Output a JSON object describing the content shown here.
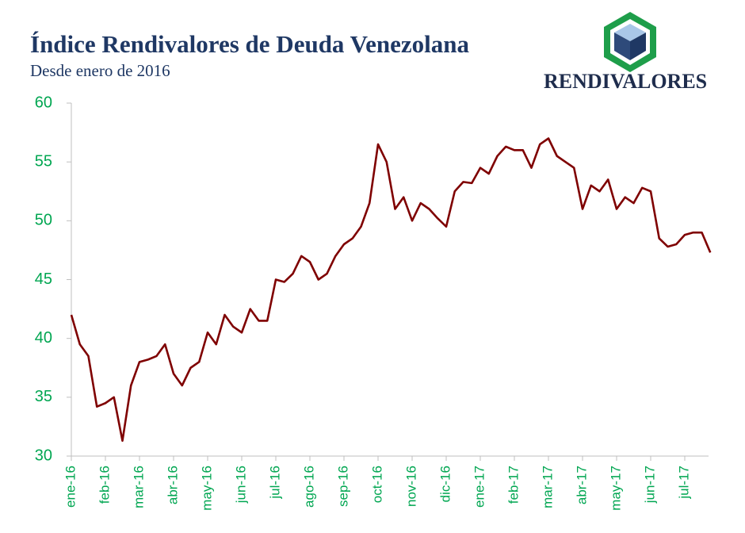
{
  "logo_text": "RENDIVALORES",
  "chart_data": {
    "type": "line",
    "title": "Índice Rendivalores de Deuda Venezolana",
    "subtitle": "Desde enero de 2016",
    "categories": [
      "ene-16",
      null,
      null,
      null,
      "feb-16",
      null,
      null,
      null,
      "mar-16",
      null,
      null,
      null,
      "abr-16",
      null,
      null,
      null,
      "may-16",
      null,
      null,
      null,
      "jun-16",
      null,
      null,
      null,
      "jul-16",
      null,
      null,
      null,
      "ago-16",
      null,
      null,
      null,
      "sep-16",
      null,
      null,
      null,
      "oct-16",
      null,
      null,
      null,
      "nov-16",
      null,
      null,
      null,
      "dic-16",
      null,
      null,
      null,
      "ene-17",
      null,
      null,
      null,
      "feb-17",
      null,
      null,
      null,
      "mar-17",
      null,
      null,
      null,
      "abr-17",
      null,
      null,
      null,
      "may-17",
      null,
      null,
      null,
      "jun-17",
      null,
      null,
      null,
      "jul-17",
      null,
      null,
      null
    ],
    "series": [
      {
        "name": "Índice",
        "color": "#7f0000",
        "values": [
          42,
          39.5,
          38.5,
          34.2,
          34.5,
          35,
          31.3,
          36,
          38,
          38.2,
          38.5,
          39.5,
          37,
          36,
          37.5,
          38,
          40.5,
          39.5,
          42,
          41,
          40.5,
          42.5,
          41.5,
          41.5,
          45,
          44.8,
          45.5,
          47,
          46.5,
          45,
          45.5,
          47,
          48,
          48.5,
          49.5,
          51.5,
          56.5,
          55,
          51,
          52,
          50,
          51.5,
          51,
          50.2,
          49.5,
          52.5,
          53.3,
          53.2,
          54.5,
          54,
          55.5,
          56.3,
          56,
          56,
          54.5,
          56.5,
          57,
          55.5,
          55,
          54.5,
          51,
          53,
          52.5,
          53.5,
          51,
          52,
          51.5,
          52.8,
          52.5,
          48.5,
          47.8,
          48,
          48.8,
          49,
          49,
          47.3
        ]
      }
    ],
    "ylim": [
      30,
      60
    ],
    "yticks": [
      30,
      35,
      40,
      45,
      50,
      55,
      60
    ],
    "grid": false
  }
}
